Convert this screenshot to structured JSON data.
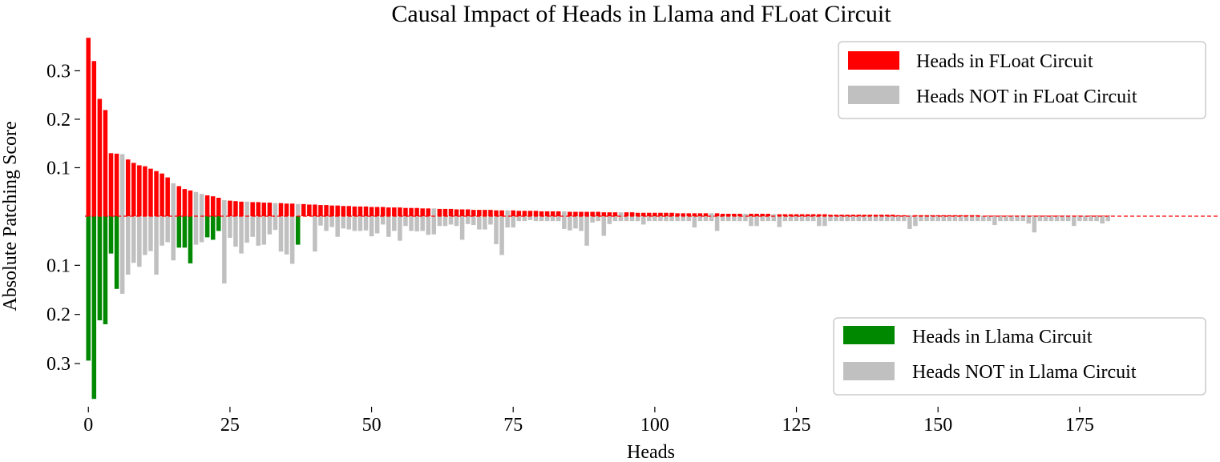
{
  "chart_data": {
    "type": "bar",
    "title": "Causal Impact of Heads in Llama and FLoat Circuit",
    "xlabel": "Heads",
    "ylabel": "Absolute Patching Score",
    "x_ticks": [
      0,
      25,
      50,
      75,
      100,
      125,
      150,
      175
    ],
    "upper_y_ticks": [
      0.1,
      0.2,
      0.3
    ],
    "lower_y_ticks": [
      0.1,
      0.2,
      0.3
    ],
    "upper_ylim": [
      0,
      0.37
    ],
    "lower_ylim": [
      0,
      0.37
    ],
    "xlim": [
      -0.6,
      199.5
    ],
    "colors": {
      "in_circuit_upper": "#ff0000",
      "in_circuit_lower": "#008800",
      "not_in_circuit": "#c0c0c0",
      "baseline": "#ff0000"
    },
    "upper_legend": {
      "position": "top-right",
      "items": [
        {
          "label": "Heads in FLoat Circuit",
          "color": "#ff0000"
        },
        {
          "label": "Heads NOT in FLoat Circuit",
          "color": "#c0c0c0"
        }
      ]
    },
    "lower_legend": {
      "position": "bottom-right",
      "items": [
        {
          "label": "Heads in Llama Circuit",
          "color": "#008800"
        },
        {
          "label": "Heads NOT in Llama Circuit",
          "color": "#c0c0c0"
        }
      ]
    },
    "upper_values": [
      0.368,
      0.32,
      0.242,
      0.219,
      0.13,
      0.129,
      0.128,
      0.117,
      0.11,
      0.105,
      0.103,
      0.098,
      0.093,
      0.088,
      0.08,
      0.068,
      0.062,
      0.056,
      0.053,
      0.05,
      0.046,
      0.043,
      0.041,
      0.038,
      0.033,
      0.032,
      0.031,
      0.03,
      0.03,
      0.029,
      0.029,
      0.028,
      0.028,
      0.027,
      0.027,
      0.026,
      0.026,
      0.025,
      0.025,
      0.024,
      0.024,
      0.023,
      0.023,
      0.022,
      0.022,
      0.021,
      0.021,
      0.02,
      0.02,
      0.02,
      0.019,
      0.019,
      0.019,
      0.018,
      0.018,
      0.018,
      0.017,
      0.017,
      0.017,
      0.016,
      0.016,
      0.016,
      0.015,
      0.015,
      0.015,
      0.014,
      0.014,
      0.014,
      0.013,
      0.013,
      0.013,
      0.013,
      0.012,
      0.012,
      0.012,
      0.012,
      0.011,
      0.011,
      0.011,
      0.011,
      0.01,
      0.01,
      0.01,
      0.01,
      0.01,
      0.009,
      0.009,
      0.009,
      0.009,
      0.009,
      0.009,
      0.008,
      0.008,
      0.008,
      0.008,
      0.008,
      0.008,
      0.007,
      0.007,
      0.007,
      0.007,
      0.007,
      0.007,
      0.007,
      0.006,
      0.006,
      0.006,
      0.006,
      0.006,
      0.006,
      0.006,
      0.006,
      0.005,
      0.005,
      0.005,
      0.005,
      0.005,
      0.005,
      0.005,
      0.005,
      0.005,
      0.004,
      0.004,
      0.004,
      0.004,
      0.004,
      0.004,
      0.004,
      0.004,
      0.004,
      0.004,
      0.003,
      0.003,
      0.003,
      0.003,
      0.003,
      0.003,
      0.003,
      0.003,
      0.003,
      0.003,
      0.003,
      0.003,
      0.002,
      0.002,
      0.002,
      0.002,
      0.002,
      0.002,
      0.002,
      0.002,
      0.002,
      0.002,
      0.002,
      0.002,
      0.002,
      0.002,
      0.002,
      0.001,
      0.001,
      0.001,
      0.001,
      0.001,
      0.001,
      0.001,
      0.001,
      0.001,
      0.001,
      0.001,
      0.001,
      0.001,
      0.001,
      0.001,
      0.001,
      0.001,
      0.001,
      0.001,
      0.001,
      0.001,
      0.001,
      0.001
    ],
    "upper_not_in_circuit_indices": [
      6,
      15,
      19,
      20,
      24,
      28,
      33,
      37,
      61,
      74,
      84,
      94,
      110,
      116,
      121,
      145,
      158,
      176
    ],
    "lower_values": [
      0.294,
      0.372,
      0.212,
      0.22,
      0.076,
      0.148,
      0.158,
      0.119,
      0.095,
      0.103,
      0.079,
      0.071,
      0.119,
      0.06,
      0.053,
      0.09,
      0.064,
      0.064,
      0.096,
      0.058,
      0.053,
      0.043,
      0.048,
      0.03,
      0.137,
      0.044,
      0.062,
      0.076,
      0.054,
      0.042,
      0.06,
      0.058,
      0.037,
      0.028,
      0.072,
      0.078,
      0.097,
      0.058,
      0.0,
      0.0,
      0.072,
      0.019,
      0.03,
      0.022,
      0.042,
      0.025,
      0.027,
      0.03,
      0.03,
      0.029,
      0.041,
      0.035,
      0.017,
      0.042,
      0.03,
      0.05,
      0.02,
      0.03,
      0.031,
      0.03,
      0.038,
      0.037,
      0.02,
      0.02,
      0.017,
      0.02,
      0.048,
      0.016,
      0.018,
      0.027,
      0.027,
      0.017,
      0.057,
      0.079,
      0.023,
      0.023,
      0.01,
      0.01,
      0.008,
      0.01,
      0.01,
      0.01,
      0.01,
      0.01,
      0.026,
      0.029,
      0.025,
      0.03,
      0.06,
      0.013,
      0.01,
      0.04,
      0.016,
      0.01,
      0.01,
      0.01,
      0.01,
      0.01,
      0.017,
      0.01,
      0.01,
      0.01,
      0.01,
      0.01,
      0.01,
      0.01,
      0.01,
      0.023,
      0.01,
      0.01,
      0.01,
      0.03,
      0.01,
      0.01,
      0.01,
      0.01,
      0.01,
      0.02,
      0.02,
      0.01,
      0.01,
      0.01,
      0.022,
      0.01,
      0.01,
      0.01,
      0.01,
      0.01,
      0.01,
      0.02,
      0.02,
      0.01,
      0.01,
      0.01,
      0.01,
      0.01,
      0.01,
      0.01,
      0.01,
      0.01,
      0.01,
      0.01,
      0.01,
      0.01,
      0.01,
      0.026,
      0.02,
      0.01,
      0.01,
      0.01,
      0.01,
      0.01,
      0.01,
      0.01,
      0.01,
      0.01,
      0.01,
      0.01,
      0.01,
      0.01,
      0.018,
      0.01,
      0.01,
      0.01,
      0.01,
      0.01,
      0.015,
      0.033,
      0.01,
      0.01,
      0.01,
      0.01,
      0.01,
      0.01,
      0.02,
      0.01,
      0.01,
      0.01,
      0.01,
      0.015,
      0.01
    ],
    "lower_not_in_circuit_indices": [
      6,
      7,
      8,
      9,
      10,
      11,
      12,
      13,
      14,
      15,
      19,
      20,
      24,
      25,
      26,
      27,
      28,
      29,
      30,
      31,
      32,
      33,
      34,
      35,
      36,
      38,
      39,
      40,
      41,
      42,
      43,
      44,
      45,
      46,
      47,
      48,
      49,
      50,
      51,
      52,
      53,
      54,
      55,
      56,
      57,
      58,
      59,
      60,
      61,
      62,
      63,
      64,
      65,
      66,
      67,
      68,
      69,
      70,
      71,
      72,
      73,
      74,
      75,
      76,
      77,
      78,
      79,
      80,
      81,
      82,
      83,
      84,
      85,
      86,
      87,
      88,
      89,
      90,
      91,
      92,
      93,
      94,
      95,
      96,
      97,
      98,
      99,
      100,
      101,
      102,
      103,
      104,
      105,
      106,
      107,
      108,
      109,
      110,
      111,
      112,
      113,
      114,
      115,
      116,
      117,
      118,
      119,
      120,
      121,
      122,
      123,
      124,
      125,
      126,
      127,
      128,
      129,
      130,
      131,
      132,
      133,
      134,
      135,
      136,
      137,
      138,
      139,
      140,
      141,
      142,
      143,
      144,
      145,
      146,
      147,
      148,
      149,
      150,
      151,
      152,
      153,
      154,
      155,
      156,
      157,
      158,
      159,
      160,
      161,
      162,
      163,
      164,
      165,
      166,
      167,
      168,
      169,
      170,
      171,
      172,
      173,
      174,
      175,
      176,
      177,
      178,
      179,
      180,
      181,
      182
    ]
  }
}
